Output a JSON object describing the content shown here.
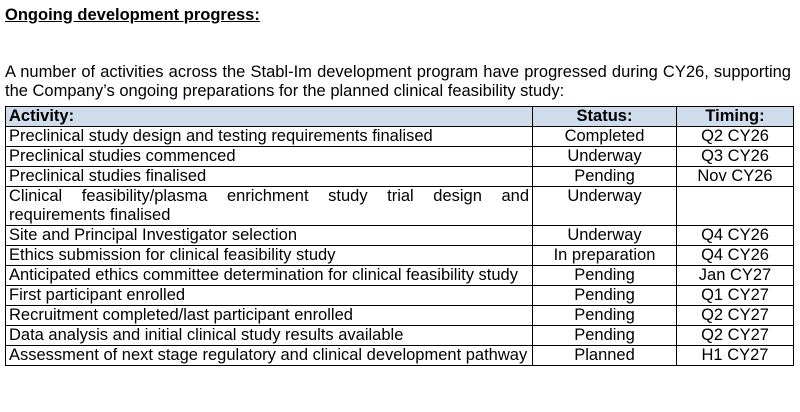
{
  "heading": "Ongoing development progress:",
  "intro": "A number of activities across the Stabl-Im development program have progressed during CY26, supporting the Company’s ongoing preparations for the planned clinical feasibility study:",
  "table": {
    "headers": {
      "activity": "Activity:",
      "status": "Status:",
      "timing": "Timing:"
    },
    "header_background": "#cfdcec",
    "rows": [
      {
        "activity": "Preclinical study design and testing requirements finalised",
        "status": "Completed",
        "timing": "Q2 CY26"
      },
      {
        "activity": "Preclinical studies commenced",
        "status": "Underway",
        "timing": "Q3 CY26"
      },
      {
        "activity": "Preclinical studies finalised",
        "status": "Pending",
        "timing": "Nov CY26"
      },
      {
        "activity": "Clinical feasibility/plasma enrichment study trial design and requirements finalised",
        "status": "Underway",
        "timing": ""
      },
      {
        "activity": "Site and Principal Investigator selection",
        "status": "Underway",
        "timing": "Q4 CY26"
      },
      {
        "activity": "Ethics submission for clinical feasibility study",
        "status": "In preparation",
        "timing": "Q4 CY26"
      },
      {
        "activity": "Anticipated ethics committee determination for clinical feasibility study",
        "status": "Pending",
        "timing": "Jan CY27"
      },
      {
        "activity": "First participant enrolled",
        "status": "Pending",
        "timing": "Q1 CY27"
      },
      {
        "activity": "Recruitment completed/last participant enrolled",
        "status": "Pending",
        "timing": "Q2 CY27"
      },
      {
        "activity": "Data analysis and initial clinical study results available",
        "status": "Pending",
        "timing": "Q2 CY27"
      },
      {
        "activity": "Assessment of next stage regulatory and clinical development pathway",
        "status": "Planned",
        "timing": "H1 CY27"
      }
    ]
  }
}
